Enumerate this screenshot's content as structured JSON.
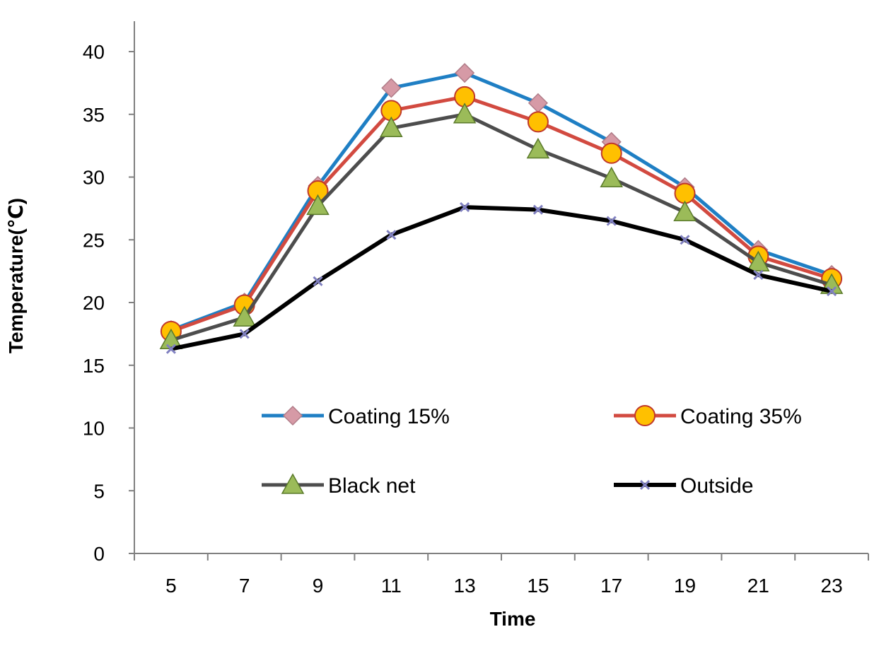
{
  "chart_data": {
    "type": "line",
    "xlabel": "Time",
    "ylabel": "Temperature(℃)",
    "x": [
      5,
      7,
      9,
      11,
      13,
      15,
      17,
      19,
      21,
      23
    ],
    "xticks": [
      "5",
      "7",
      "9",
      "11",
      "13",
      "15",
      "17",
      "19",
      "21",
      "23"
    ],
    "ylim": [
      0,
      40
    ],
    "yticks": [
      "0",
      "5",
      "10",
      "15",
      "20",
      "25",
      "30",
      "35",
      "40"
    ],
    "grid": false,
    "legend_position": "inside-bottom",
    "series": [
      {
        "name": "Coating 15%",
        "color": "#1f7fc4",
        "marker": "diamond",
        "marker_color": "#d69aa6",
        "values": [
          17.8,
          20.0,
          29.3,
          37.1,
          38.3,
          35.9,
          32.8,
          29.2,
          24.2,
          22.2
        ]
      },
      {
        "name": "Coating 35%",
        "color": "#d24a40",
        "marker": "circle",
        "marker_color": "#ffc000",
        "values": [
          17.7,
          19.8,
          28.9,
          35.3,
          36.4,
          34.4,
          31.9,
          28.7,
          23.7,
          21.9
        ]
      },
      {
        "name": "Black net",
        "color": "#4d4d4d",
        "marker": "triangle",
        "marker_color": "#9bbb59",
        "values": [
          17.0,
          18.8,
          27.7,
          33.9,
          35.0,
          32.2,
          29.9,
          27.2,
          23.2,
          21.4
        ]
      },
      {
        "name": "Outside",
        "color": "#000000",
        "marker": "x",
        "marker_color": "#8080c0",
        "values": [
          16.3,
          17.5,
          21.7,
          25.4,
          27.6,
          27.4,
          26.5,
          25.0,
          22.2,
          20.9
        ]
      }
    ]
  }
}
